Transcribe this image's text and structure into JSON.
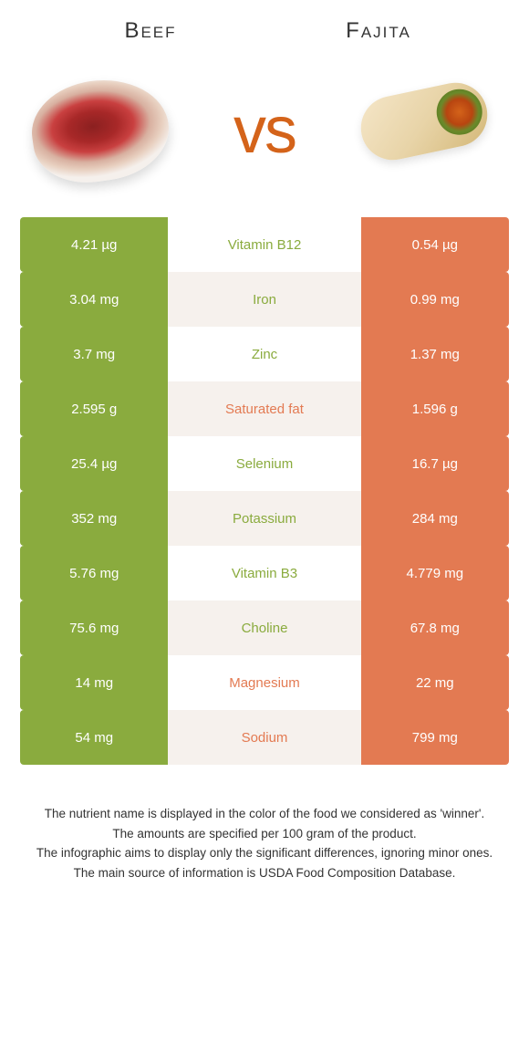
{
  "header": {
    "left_title": "Beef",
    "right_title": "Fajita",
    "vs_text": "vs"
  },
  "colors": {
    "left_bg": "#8aab3e",
    "right_bg": "#e37a52",
    "alt_row_bg": "#f6f1ed",
    "vs_color": "#d4631a",
    "text_white": "#ffffff"
  },
  "rows": [
    {
      "left": "4.21 µg",
      "label": "Vitamin B12",
      "right": "0.54 µg",
      "winner": "left",
      "alt": false
    },
    {
      "left": "3.04 mg",
      "label": "Iron",
      "right": "0.99 mg",
      "winner": "left",
      "alt": true
    },
    {
      "left": "3.7 mg",
      "label": "Zinc",
      "right": "1.37 mg",
      "winner": "left",
      "alt": false
    },
    {
      "left": "2.595 g",
      "label": "Saturated fat",
      "right": "1.596 g",
      "winner": "right",
      "alt": true
    },
    {
      "left": "25.4 µg",
      "label": "Selenium",
      "right": "16.7 µg",
      "winner": "left",
      "alt": false
    },
    {
      "left": "352 mg",
      "label": "Potassium",
      "right": "284 mg",
      "winner": "left",
      "alt": true
    },
    {
      "left": "5.76 mg",
      "label": "Vitamin B3",
      "right": "4.779 mg",
      "winner": "left",
      "alt": false
    },
    {
      "left": "75.6 mg",
      "label": "Choline",
      "right": "67.8 mg",
      "winner": "left",
      "alt": true
    },
    {
      "left": "14 mg",
      "label": "Magnesium",
      "right": "22 mg",
      "winner": "right",
      "alt": false
    },
    {
      "left": "54 mg",
      "label": "Sodium",
      "right": "799 mg",
      "winner": "right",
      "alt": true
    }
  ],
  "footer": {
    "line1": "The nutrient name is displayed in the color of the food we considered as 'winner'.",
    "line2": "The amounts are specified per 100 gram of the product.",
    "line3": "The infographic aims to display only the significant differences, ignoring minor ones.",
    "line4": "The main source of information is USDA Food Composition Database."
  }
}
